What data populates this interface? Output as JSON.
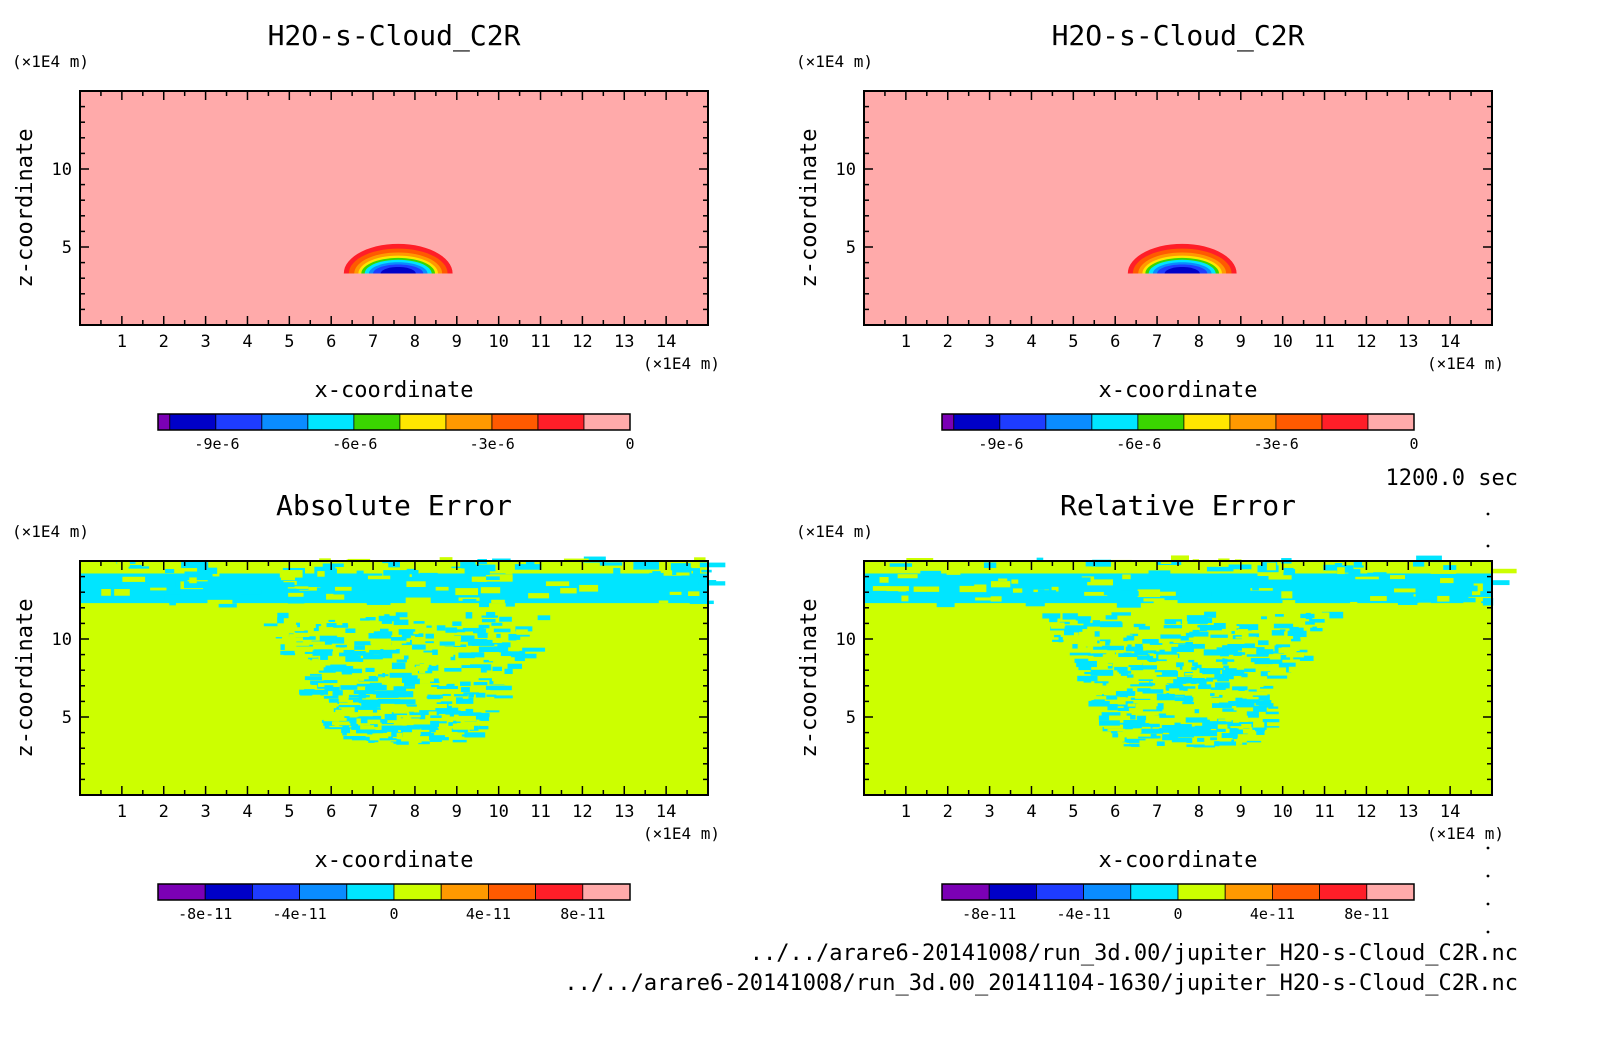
{
  "chart_data": [
    {
      "type": "heatmap",
      "title": "H2O-s-Cloud_C2R",
      "xlabel": "x-coordinate",
      "ylabel": "z-coordinate",
      "x_unit": "(×1E4 m)",
      "y_unit": "(×1E4 m)",
      "xlim": [
        0,
        15
      ],
      "ylim": [
        0,
        15
      ],
      "x_ticks": [
        "1",
        "2",
        "3",
        "4",
        "5",
        "6",
        "7",
        "8",
        "9",
        "10",
        "11",
        "12",
        "13",
        "14"
      ],
      "y_ticks": [
        "5",
        "10"
      ],
      "field": "cloud",
      "colorbar": {
        "colors": [
          "#7b00b5",
          "#0000c8",
          "#1e3cff",
          "#0a8cff",
          "#00e5ff",
          "#3ad600",
          "#ffe600",
          "#ff9900",
          "#ff5a00",
          "#ff1e28",
          "#ffaaaa"
        ],
        "tick_labels": [
          "-9e-6",
          "-6e-6",
          "-3e-6",
          "0"
        ],
        "tick_positions": [
          0.125,
          0.417,
          0.708,
          1.0
        ]
      }
    },
    {
      "type": "heatmap",
      "title": "H2O-s-Cloud_C2R",
      "xlabel": "x-coordinate",
      "ylabel": "z-coordinate",
      "x_unit": "(×1E4 m)",
      "y_unit": "(×1E4 m)",
      "xlim": [
        0,
        15
      ],
      "ylim": [
        0,
        15
      ],
      "x_ticks": [
        "1",
        "2",
        "3",
        "4",
        "5",
        "6",
        "7",
        "8",
        "9",
        "10",
        "11",
        "12",
        "13",
        "14"
      ],
      "y_ticks": [
        "5",
        "10"
      ],
      "field": "cloud",
      "colorbar": {
        "colors": [
          "#7b00b5",
          "#0000c8",
          "#1e3cff",
          "#0a8cff",
          "#00e5ff",
          "#3ad600",
          "#ffe600",
          "#ff9900",
          "#ff5a00",
          "#ff1e28",
          "#ffaaaa"
        ],
        "tick_labels": [
          "-9e-6",
          "-6e-6",
          "-3e-6",
          "0"
        ],
        "tick_positions": [
          0.125,
          0.417,
          0.708,
          1.0
        ]
      }
    },
    {
      "type": "heatmap",
      "title": "Absolute Error",
      "xlabel": "x-coordinate",
      "ylabel": "z-coordinate",
      "x_unit": "(×1E4 m)",
      "y_unit": "(×1E4 m)",
      "xlim": [
        0,
        15
      ],
      "ylim": [
        0,
        15
      ],
      "x_ticks": [
        "1",
        "2",
        "3",
        "4",
        "5",
        "6",
        "7",
        "8",
        "9",
        "10",
        "11",
        "12",
        "13",
        "14"
      ],
      "y_ticks": [
        "5",
        "10"
      ],
      "field": "error",
      "error_region": {
        "x_half_width_top": 3.4,
        "x_half_width_bottom": 1.3,
        "z_top": 11.5,
        "z_bottom": 3.2,
        "x_center": 7.6
      },
      "colorbar": {
        "colors": [
          "#7b00b5",
          "#0000c8",
          "#1e3cff",
          "#0a8cff",
          "#00e5ff",
          "#ccff00",
          "#ff9900",
          "#ff5a00",
          "#ff1e28",
          "#ffaaaa"
        ],
        "tick_labels": [
          "-8e-11",
          "-4e-11",
          "0",
          "4e-11",
          "8e-11"
        ],
        "tick_positions": [
          0.1,
          0.3,
          0.5,
          0.7,
          0.9
        ]
      }
    },
    {
      "type": "heatmap",
      "title": "Relative Error",
      "xlabel": "x-coordinate",
      "ylabel": "z-coordinate",
      "x_unit": "(×1E4 m)",
      "y_unit": "(×1E4 m)",
      "xlim": [
        0,
        15
      ],
      "ylim": [
        0,
        15
      ],
      "x_ticks": [
        "1",
        "2",
        "3",
        "4",
        "5",
        "6",
        "7",
        "8",
        "9",
        "10",
        "11",
        "12",
        "13",
        "14"
      ],
      "y_ticks": [
        "5",
        "10"
      ],
      "field": "error",
      "error_region": {
        "x_half_width_top": 3.4,
        "x_half_width_bottom": 1.5,
        "z_top": 11.5,
        "z_bottom": 3.0,
        "x_center": 7.6
      },
      "colorbar": {
        "colors": [
          "#7b00b5",
          "#0000c8",
          "#1e3cff",
          "#0a8cff",
          "#00e5ff",
          "#ccff00",
          "#ff9900",
          "#ff5a00",
          "#ff1e28",
          "#ffaaaa"
        ],
        "tick_labels": [
          "-8e-11",
          "-4e-11",
          "0",
          "4e-11",
          "8e-11"
        ],
        "tick_positions": [
          0.1,
          0.3,
          0.5,
          0.7,
          0.9
        ]
      }
    }
  ],
  "annotations": {
    "time": "1200.0 sec",
    "file1": "../../arare6-20141008/run_3d.00/jupiter_H2O-s-Cloud_C2R.nc",
    "file2": "../../arare6-20141008/run_3d.00_20141104-1630/jupiter_H2O-s-Cloud_C2R.nc"
  }
}
